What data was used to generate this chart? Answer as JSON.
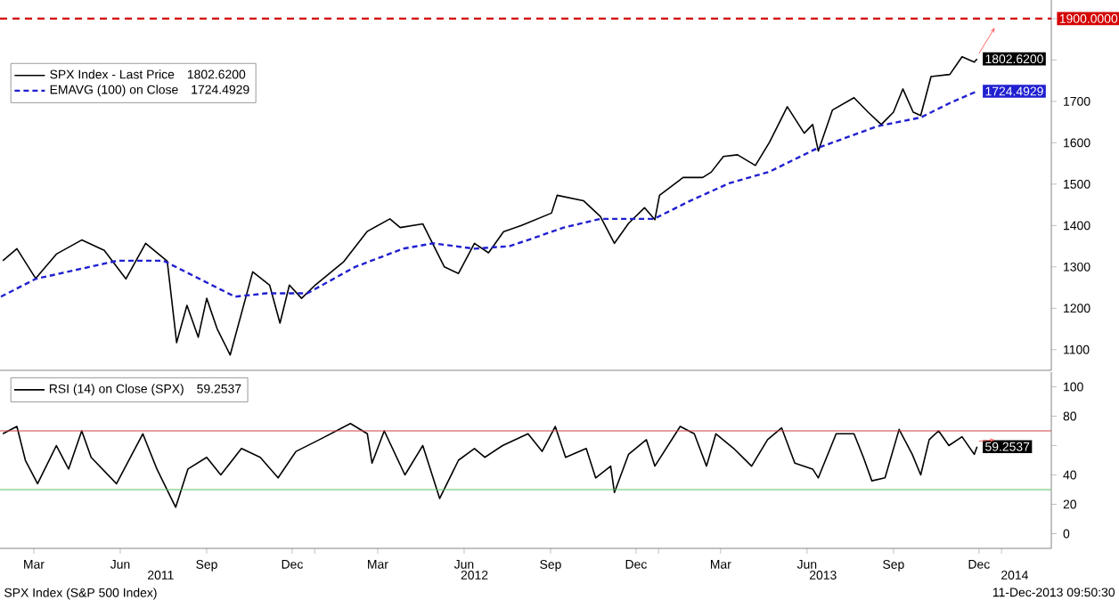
{
  "chart_data": [
    {
      "type": "line",
      "xlim": [
        "2011-01-31",
        "2014-02-23"
      ],
      "ylim": [
        1050,
        1945
      ],
      "yticks": [
        1100,
        1200,
        1300,
        1400,
        1500,
        1600,
        1700,
        {
          "value": 1800,
          "label": null
        },
        {
          "value": 1900,
          "label": null
        }
      ],
      "tick_labels": "y",
      "legend": "top left",
      "ref_lines": [
        {
          "axis": "y",
          "value": 1900,
          "label": "1900.0000",
          "color": "#d40000",
          "line_style": "dashed"
        }
      ],
      "series": [
        {
          "name": "SPX Index - Last Price",
          "color": "#000000",
          "x": [
            "2011-02-03",
            "2011-02-18",
            "2011-03-10",
            "2011-04-01",
            "2011-04-28",
            "2011-05-22",
            "2011-06-14",
            "2011-07-05",
            "2011-07-28",
            "2011-08-07",
            "2011-08-18",
            "2011-08-30",
            "2011-09-08",
            "2011-09-19",
            "2011-10-03",
            "2011-10-27",
            "2011-11-14",
            "2011-11-25",
            "2011-12-05",
            "2011-12-18",
            "2012-01-02",
            "2012-02-01",
            "2012-02-26",
            "2012-03-21",
            "2012-04-01",
            "2012-04-25",
            "2012-05-18",
            "2012-06-02",
            "2012-06-19",
            "2012-07-04",
            "2012-07-20",
            "2012-08-08",
            "2012-09-09",
            "2012-09-15",
            "2012-10-13",
            "2012-10-31",
            "2012-11-15",
            "2012-11-30",
            "2012-12-17",
            "2012-12-28",
            "2013-01-02",
            "2013-01-27",
            "2013-02-17",
            "2013-02-26",
            "2013-03-11",
            "2013-03-26",
            "2013-04-14",
            "2013-04-29",
            "2013-05-18",
            "2013-06-05",
            "2013-06-14",
            "2013-06-20",
            "2013-07-05",
            "2013-07-28",
            "2013-08-12",
            "2013-08-26",
            "2013-09-08",
            "2013-09-18",
            "2013-09-29",
            "2013-10-07",
            "2013-10-18",
            "2013-11-07",
            "2013-11-20",
            "2013-12-03",
            "2013-12-06"
          ],
          "values": [
            1315,
            1344,
            1272,
            1331,
            1365,
            1340,
            1271,
            1357,
            1314,
            1117,
            1207,
            1130,
            1224,
            1151,
            1087,
            1288,
            1256,
            1164,
            1256,
            1224,
            1257,
            1313,
            1386,
            1416,
            1395,
            1404,
            1300,
            1284,
            1357,
            1334,
            1385,
            1400,
            1430,
            1473,
            1460,
            1422,
            1357,
            1405,
            1443,
            1414,
            1473,
            1516,
            1516,
            1529,
            1567,
            1571,
            1545,
            1601,
            1687,
            1623,
            1644,
            1580,
            1679,
            1709,
            1674,
            1644,
            1674,
            1730,
            1674,
            1666,
            1760,
            1765,
            1808,
            1795,
            1802.62
          ],
          "value_labels": [
            null,
            null,
            null,
            null,
            null,
            null,
            null,
            null,
            null,
            null,
            null,
            null,
            null,
            null,
            null,
            null,
            null,
            null,
            null,
            null,
            null,
            null,
            null,
            null,
            null,
            null,
            null,
            null,
            null,
            null,
            null,
            null,
            null,
            null,
            null,
            null,
            null,
            null,
            null,
            null,
            null,
            null,
            null,
            null,
            null,
            null,
            null,
            null,
            null,
            null,
            null,
            null,
            null,
            null,
            null,
            null,
            null,
            null,
            null,
            null,
            null,
            null,
            null,
            null,
            "1802.6200"
          ]
        },
        {
          "name": "EMAVG (100) on Close",
          "color": "#2020d0",
          "line_style": "dashed",
          "x": [
            "2011-02-01",
            "2011-03-10",
            "2011-06-05",
            "2011-07-24",
            "2011-10-08",
            "2011-11-10",
            "2011-12-24",
            "2012-02-13",
            "2012-04-04",
            "2012-05-06",
            "2012-06-19",
            "2012-07-26",
            "2012-08-15",
            "2012-09-22",
            "2012-10-31",
            "2012-12-27",
            "2013-02-03",
            "2013-03-17",
            "2013-04-29",
            "2013-06-20",
            "2013-08-22",
            "2013-10-07",
            "2013-11-07",
            "2013-12-06"
          ],
          "values": [
            1228,
            1271,
            1315,
            1315,
            1228,
            1236,
            1236,
            1300,
            1344,
            1357,
            1344,
            1350,
            1365,
            1395,
            1416,
            1416,
            1459,
            1502,
            1530,
            1588,
            1640,
            1661,
            1696,
            1724.4929
          ],
          "value_labels": [
            null,
            null,
            null,
            null,
            null,
            null,
            null,
            null,
            null,
            null,
            null,
            null,
            null,
            null,
            null,
            null,
            null,
            null,
            null,
            null,
            null,
            null,
            null,
            "1724.4929"
          ]
        }
      ]
    },
    {
      "type": "line",
      "xlim": [
        "2011-01-31",
        "2014-02-23"
      ],
      "ylim": [
        -10,
        110
      ],
      "yticks": [
        0,
        20,
        40,
        {
          "value": 60,
          "label": null
        },
        80,
        100
      ],
      "legend": "top left",
      "xticks": [
        {
          "value": "2011-03-08",
          "label": "Mar"
        },
        {
          "value": "2011-06-08",
          "label": "Jun"
        },
        {
          "value": "2011-09-08",
          "label": "Sep"
        },
        {
          "value": "2011-12-08",
          "label": "Dec"
        },
        {
          "value": "2012-03-08",
          "label": "Mar"
        },
        {
          "value": "2012-06-08",
          "label": "Jun"
        },
        {
          "value": "2012-09-08",
          "label": "Sep"
        },
        {
          "value": "2012-12-08",
          "label": "Dec"
        },
        {
          "value": "2013-03-08",
          "label": "Mar"
        },
        {
          "value": "2013-06-08",
          "label": "Jun"
        },
        {
          "value": "2013-09-08",
          "label": "Sep"
        },
        {
          "value": "2013-12-08",
          "label": "Dec"
        },
        {
          "value": "2012-01-01",
          "label": null
        },
        {
          "value": "2013-01-01",
          "label": null
        },
        {
          "value": "2014-01-01",
          "label": null
        }
      ],
      "x2lim": [
        "2011-01-31",
        "2014-02-23"
      ],
      "x2ticks": [
        {
          "value": "2011-07-21",
          "label": "2011"
        },
        {
          "value": "2012-06-19",
          "label": "2012"
        },
        {
          "value": "2013-06-25",
          "label": "2013"
        },
        {
          "value": "2014-01-15",
          "label": "2014"
        }
      ],
      "ref_lines": [
        {
          "axis": "y",
          "value": 70,
          "color": "#d04040"
        },
        {
          "axis": "y",
          "value": 30,
          "color": "#60c060"
        }
      ],
      "annotations": [
        "SPX Index (S&P 500 Index)",
        "11-Dec-2013 09:50:30"
      ],
      "series": [
        {
          "name": "RSI (14) on Close (SPX)",
          "color": "#000000",
          "x": [
            "2011-02-03",
            "2011-02-18",
            "2011-02-27",
            "2011-03-12",
            "2011-04-01",
            "2011-04-14",
            "2011-04-28",
            "2011-05-08",
            "2011-06-04",
            "2011-07-02",
            "2011-07-17",
            "2011-08-06",
            "2011-08-19",
            "2011-09-08",
            "2011-09-23",
            "2011-10-15",
            "2011-11-04",
            "2011-11-23",
            "2011-12-12",
            "2012-01-06",
            "2012-02-08",
            "2012-02-26",
            "2012-03-02",
            "2012-03-15",
            "2012-04-06",
            "2012-04-25",
            "2012-05-13",
            "2012-06-02",
            "2012-06-19",
            "2012-06-30",
            "2012-07-19",
            "2012-08-15",
            "2012-08-30",
            "2012-09-13",
            "2012-09-24",
            "2012-10-16",
            "2012-10-26",
            "2012-11-11",
            "2012-11-15",
            "2012-11-30",
            "2012-12-19",
            "2012-12-28",
            "2013-01-24",
            "2013-02-08",
            "2013-02-21",
            "2013-03-03",
            "2013-03-22",
            "2013-04-10",
            "2013-04-27",
            "2013-05-12",
            "2013-05-26",
            "2013-06-14",
            "2013-06-20",
            "2013-07-09",
            "2013-07-28",
            "2013-08-07",
            "2013-08-16",
            "2013-08-30",
            "2013-09-14",
            "2013-09-28",
            "2013-10-07",
            "2013-10-16",
            "2013-10-26",
            "2013-11-06",
            "2013-11-20",
            "2013-12-03",
            "2013-12-06"
          ],
          "values": [
            68,
            73,
            50,
            34,
            60,
            44,
            70,
            52,
            34,
            68,
            44,
            18,
            44,
            52,
            40,
            58,
            52,
            38,
            56,
            64,
            75,
            68,
            48,
            70,
            40,
            60,
            24,
            50,
            58,
            52,
            60,
            68,
            56,
            73,
            52,
            58,
            38,
            46,
            28,
            54,
            64,
            46,
            73,
            68,
            46,
            68,
            58,
            46,
            64,
            72,
            48,
            44,
            38,
            68,
            68,
            52,
            36,
            38,
            71,
            54,
            40,
            64,
            70,
            60,
            66,
            54,
            59.2537
          ],
          "value_labels": [
            null,
            null,
            null,
            null,
            null,
            null,
            null,
            null,
            null,
            null,
            null,
            null,
            null,
            null,
            null,
            null,
            null,
            null,
            null,
            null,
            null,
            null,
            null,
            null,
            null,
            null,
            null,
            null,
            null,
            null,
            null,
            null,
            null,
            null,
            null,
            null,
            null,
            null,
            null,
            null,
            null,
            null,
            null,
            null,
            null,
            null,
            null,
            null,
            null,
            null,
            null,
            null,
            null,
            null,
            null,
            null,
            null,
            null,
            null,
            null,
            null,
            null,
            null,
            null,
            null,
            null,
            "59.2537"
          ]
        }
      ]
    }
  ]
}
